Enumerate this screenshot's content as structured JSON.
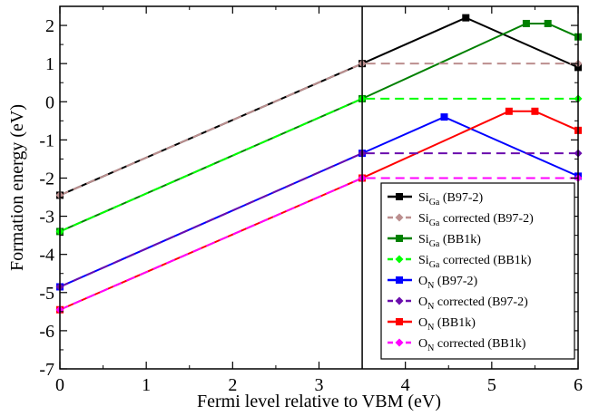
{
  "chart_data": {
    "type": "line",
    "xlabel": "Fermi level relative to VBM (eV)",
    "ylabel": "Formation energy (eV)",
    "xlim": [
      0,
      6
    ],
    "ylim": [
      -7,
      2.5
    ],
    "xticks": [
      0,
      1,
      2,
      3,
      4,
      5,
      6
    ],
    "yticks": [
      -7,
      -6,
      -5,
      -4,
      -3,
      -2,
      -1,
      0,
      1,
      2
    ],
    "xtick_labels": [
      "0",
      "1",
      "2",
      "3",
      "4",
      "5",
      "6"
    ],
    "ytick_labels": [
      "-7",
      "-6",
      "-5",
      "-4",
      "-3",
      "-2",
      "-1",
      "0",
      "1",
      "2"
    ],
    "vertical_line_x": 3.5,
    "grid": false,
    "legend_position": "bottom-right",
    "series": [
      {
        "name_main": "Si",
        "name_sub": "Ga",
        "name_rest": " (B97-2)",
        "color": "#000000",
        "dashed": false,
        "marker": "square",
        "x": [
          0,
          3.5,
          4.7,
          6.0
        ],
        "y": [
          -2.45,
          1.0,
          2.2,
          0.9
        ]
      },
      {
        "name_main": "Si",
        "name_sub": "Ga",
        "name_rest": " corrected (B97-2)",
        "color": "#bc8f8f",
        "dashed": true,
        "marker": "diamond",
        "x": [
          0,
          3.5,
          6.0
        ],
        "y": [
          -2.45,
          1.0,
          1.0
        ]
      },
      {
        "name_main": "Si",
        "name_sub": "Ga",
        "name_rest": " (BB1k)",
        "color": "#008000",
        "dashed": false,
        "marker": "square",
        "x": [
          0,
          3.5,
          5.4,
          5.65,
          6.0
        ],
        "y": [
          -3.4,
          0.08,
          2.05,
          2.05,
          1.7
        ]
      },
      {
        "name_main": "Si",
        "name_sub": "Ga",
        "name_rest": " corrected (BB1k)",
        "color": "#00ff00",
        "dashed": true,
        "marker": "diamond",
        "x": [
          0,
          3.5,
          6.0
        ],
        "y": [
          -3.4,
          0.08,
          0.08
        ]
      },
      {
        "name_main": "O",
        "name_sub": "N",
        "name_rest": " (B97-2)",
        "color": "#0000ff",
        "dashed": false,
        "marker": "square",
        "x": [
          0,
          3.5,
          4.45,
          6.0
        ],
        "y": [
          -4.85,
          -1.35,
          -0.4,
          -1.95
        ]
      },
      {
        "name_main": "O",
        "name_sub": "N",
        "name_rest": " corrected (B97-2)",
        "color": "#6a0dad",
        "dashed": true,
        "marker": "diamond",
        "x": [
          0,
          3.5,
          6.0
        ],
        "y": [
          -4.85,
          -1.35,
          -1.35
        ]
      },
      {
        "name_main": "O",
        "name_sub": "N",
        "name_rest": " (BB1k)",
        "color": "#ff0000",
        "dashed": false,
        "marker": "square",
        "x": [
          0,
          3.5,
          5.2,
          5.5,
          6.0
        ],
        "y": [
          -5.45,
          -2.0,
          -0.25,
          -0.25,
          -0.75
        ]
      },
      {
        "name_main": "O",
        "name_sub": "N",
        "name_rest": " corrected (BB1k)",
        "color": "#ff00ff",
        "dashed": true,
        "marker": "diamond",
        "x": [
          0,
          3.5,
          6.0
        ],
        "y": [
          -5.45,
          -2.0,
          -2.0
        ]
      }
    ]
  }
}
